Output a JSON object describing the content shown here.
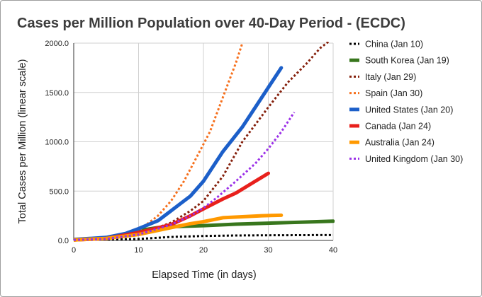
{
  "chart_data": {
    "type": "line",
    "title": "Cases per Million Population over 40-Day Period - (ECDC)",
    "xlabel": "Elapsed Time (in days)",
    "ylabel": "Total Cases per Million (linear scale)",
    "xlim": [
      0,
      40
    ],
    "ylim": [
      0,
      2000
    ],
    "xticks": [
      0,
      10,
      20,
      30,
      40
    ],
    "xtick_labels": [
      "0",
      "10",
      "20",
      "30",
      "40"
    ],
    "yticks": [
      0,
      500,
      1000,
      1500,
      2000
    ],
    "ytick_labels": [
      "0.0",
      "500.0",
      "1000.0",
      "1500.0",
      "2000.0"
    ],
    "grid": true,
    "legend_position": "right",
    "series": [
      {
        "name": "China (Jan 10)",
        "color": "#000000",
        "style": "dotted",
        "points": [
          [
            0,
            5
          ],
          [
            5,
            8
          ],
          [
            10,
            15
          ],
          [
            15,
            35
          ],
          [
            20,
            45
          ],
          [
            25,
            50
          ],
          [
            30,
            52
          ],
          [
            35,
            54
          ],
          [
            40,
            55
          ]
        ]
      },
      {
        "name": "South Korea (Jan 19)",
        "color": "#38761d",
        "style": "solid",
        "points": [
          [
            0,
            5
          ],
          [
            5,
            25
          ],
          [
            8,
            60
          ],
          [
            10,
            100
          ],
          [
            13,
            130
          ],
          [
            15,
            140
          ],
          [
            20,
            150
          ],
          [
            25,
            165
          ],
          [
            30,
            175
          ],
          [
            35,
            185
          ],
          [
            40,
            195
          ]
        ]
      },
      {
        "name": "Italy (Jan 29)",
        "color": "#85200c",
        "style": "dotted",
        "points": [
          [
            0,
            5
          ],
          [
            5,
            15
          ],
          [
            10,
            60
          ],
          [
            15,
            180
          ],
          [
            18,
            300
          ],
          [
            20,
            400
          ],
          [
            23,
            650
          ],
          [
            26,
            1000
          ],
          [
            30,
            1350
          ],
          [
            33,
            1600
          ],
          [
            36,
            1800
          ],
          [
            38,
            1950
          ],
          [
            40,
            2050
          ]
        ]
      },
      {
        "name": "Spain (Jan 30)",
        "color": "#f6701d",
        "style": "dotted",
        "points": [
          [
            0,
            5
          ],
          [
            5,
            20
          ],
          [
            10,
            100
          ],
          [
            13,
            250
          ],
          [
            15,
            400
          ],
          [
            17,
            600
          ],
          [
            19,
            850
          ],
          [
            21,
            1100
          ],
          [
            23,
            1450
          ],
          [
            25,
            1800
          ],
          [
            26,
            2000
          ]
        ]
      },
      {
        "name": "United States (Jan 20)",
        "color": "#1c5fc9",
        "style": "solid",
        "points": [
          [
            0,
            10
          ],
          [
            5,
            30
          ],
          [
            8,
            70
          ],
          [
            10,
            120
          ],
          [
            13,
            200
          ],
          [
            15,
            300
          ],
          [
            18,
            450
          ],
          [
            20,
            600
          ],
          [
            23,
            900
          ],
          [
            26,
            1150
          ],
          [
            28,
            1350
          ],
          [
            30,
            1550
          ],
          [
            32,
            1750
          ]
        ]
      },
      {
        "name": "Canada (Jan 24)",
        "color": "#e8201c",
        "style": "solid",
        "points": [
          [
            0,
            5
          ],
          [
            5,
            20
          ],
          [
            10,
            80
          ],
          [
            15,
            160
          ],
          [
            18,
            250
          ],
          [
            20,
            320
          ],
          [
            23,
            420
          ],
          [
            25,
            480
          ],
          [
            28,
            600
          ],
          [
            30,
            680
          ]
        ]
      },
      {
        "name": "Australia (Jan 24)",
        "color": "#ff9900",
        "style": "solid",
        "points": [
          [
            0,
            5
          ],
          [
            5,
            20
          ],
          [
            10,
            60
          ],
          [
            15,
            130
          ],
          [
            18,
            170
          ],
          [
            20,
            190
          ],
          [
            23,
            230
          ],
          [
            26,
            240
          ],
          [
            29,
            250
          ],
          [
            32,
            255
          ]
        ]
      },
      {
        "name": "United Kingdom (Jan 30)",
        "color": "#9b30e8",
        "style": "dotted",
        "points": [
          [
            0,
            5
          ],
          [
            5,
            15
          ],
          [
            10,
            60
          ],
          [
            15,
            160
          ],
          [
            18,
            250
          ],
          [
            20,
            330
          ],
          [
            22,
            430
          ],
          [
            25,
            600
          ],
          [
            28,
            780
          ],
          [
            30,
            930
          ],
          [
            32,
            1100
          ],
          [
            34,
            1300
          ]
        ]
      }
    ]
  }
}
